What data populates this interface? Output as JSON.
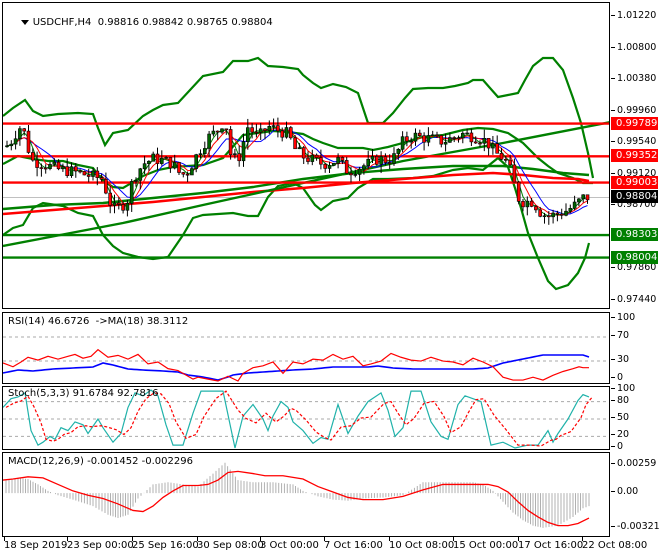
{
  "header": {
    "symbol": "USDCHF,H4",
    "open": "0.98816",
    "high": "0.98842",
    "low": "0.98765",
    "close": "0.98804",
    "title": "USDCHF,H4  0.98816 0.98842 0.98765 0.98804"
  },
  "main_axis": {
    "ticks": [
      "1.01220",
      "1.00800",
      "1.00380",
      "0.99960",
      "0.99540",
      "0.99120",
      "0.98700",
      "0.97860",
      "0.97440"
    ],
    "tags": [
      {
        "value": "0.99789",
        "color": "#ff0000"
      },
      {
        "value": "0.99352",
        "color": "#ff0000"
      },
      {
        "value": "0.99003",
        "color": "#ff0000"
      },
      {
        "value": "0.98804",
        "color": "#000000"
      },
      {
        "value": "0.98303",
        "color": "#008000"
      },
      {
        "value": "0.98004",
        "color": "#008000"
      }
    ]
  },
  "rsi": {
    "label": "RSI(14) 46.6726  ->MA(18) 38.3112",
    "ticks": [
      "100",
      "70",
      "30",
      "0"
    ]
  },
  "stoch": {
    "label": "Stoch(5,3,3) 91.6784 92.7816",
    "ticks": [
      "100",
      "80",
      "50",
      "20",
      "0"
    ]
  },
  "macd": {
    "label": "MACD(12,26,9) -0.001452 -0.002296",
    "ticks": [
      "0.00259",
      "0.00",
      "-0.003217"
    ]
  },
  "xaxis": {
    "labels": [
      "18 Sep 2019",
      "23 Sep 00:00",
      "25 Sep 16:00",
      "30 Sep 08:00",
      "3 Oct 00:00",
      "7 Oct 16:00",
      "10 Oct 08:00",
      "15 Oct 00:00",
      "17 Oct 16:00",
      "22 Oct 08:00"
    ]
  },
  "colors": {
    "resistance": "#ff0000",
    "support": "#008000",
    "bull_candle": "#006400",
    "bear_candle": "#ff0000",
    "rsi_line": "#ff0000",
    "rsi_ma": "#0000ff",
    "stoch_main": "#20b2aa",
    "stoch_signal": "#ff0000",
    "macd_signal": "#ff0000",
    "macd_hist": "#c0c0c0"
  },
  "chart_data": [
    {
      "type": "candlestick",
      "title": "USDCHF,H4",
      "ohlc_last": {
        "open": 0.98816,
        "high": 0.98842,
        "low": 0.98765,
        "close": 0.98804
      },
      "ylim": [
        0.973,
        1.014
      ],
      "y_ticks": [
        1.0122,
        1.008,
        1.0038,
        0.9996,
        0.9954,
        0.9912,
        0.987,
        0.9786,
        0.9744
      ],
      "horizontal_levels": [
        {
          "value": 0.99789,
          "color": "red",
          "kind": "resistance"
        },
        {
          "value": 0.99352,
          "color": "red",
          "kind": "resistance"
        },
        {
          "value": 0.99003,
          "color": "red",
          "kind": "resistance"
        },
        {
          "value": 0.98303,
          "color": "green",
          "kind": "support"
        },
        {
          "value": 0.98004,
          "color": "green",
          "kind": "support"
        }
      ],
      "current_price": 0.98804,
      "overlays": [
        "Bollinger Bands (green)",
        "Moving averages (red/blue/green thin)",
        "Long moving averages (green/red thick)",
        "Ascending trendline (green)"
      ],
      "x_labels": [
        "18 Sep 2019",
        "23 Sep 00:00",
        "25 Sep 16:00",
        "30 Sep 08:00",
        "3 Oct 00:00",
        "7 Oct 16:00",
        "10 Oct 08:00",
        "15 Oct 00:00",
        "17 Oct 16:00",
        "22 Oct 08:00"
      ],
      "approx_close_path": [
        0.994,
        0.9925,
        0.9905,
        0.9895,
        0.988,
        0.9862,
        0.988,
        0.992,
        0.993,
        0.9905,
        0.996,
        0.9985,
        0.996,
        0.9975,
        0.9945,
        0.993,
        0.9925,
        0.991,
        0.994,
        0.9955,
        0.9965,
        0.996,
        0.9975,
        0.9965,
        0.993,
        0.989,
        0.987,
        0.9862,
        0.9865,
        0.9875,
        0.9882
      ]
    },
    {
      "type": "line",
      "title": "RSI(14) 46.6726 ->MA(18) 38.3112",
      "ylim": [
        0,
        100
      ],
      "y_ticks": [
        100,
        70,
        30,
        0
      ],
      "grid_levels": [
        70,
        30
      ],
      "series": [
        {
          "name": "RSI(14)",
          "color": "red",
          "last": 46.6726
        },
        {
          "name": "MA(18)",
          "color": "blue",
          "last": 38.3112
        }
      ]
    },
    {
      "type": "line",
      "title": "Stoch(5,3,3) 91.6784 92.7816",
      "ylim": [
        0,
        100
      ],
      "y_ticks": [
        100,
        80,
        50,
        20,
        0
      ],
      "grid_levels": [
        80,
        50,
        20
      ],
      "series": [
        {
          "name": "%K",
          "color": "lightseagreen",
          "last": 91.6784
        },
        {
          "name": "%D",
          "color": "red",
          "style": "dashed",
          "last": 92.7816
        }
      ]
    },
    {
      "type": "bar",
      "title": "MACD(12,26,9) -0.001452 -0.002296",
      "ylim": [
        -0.003217,
        0.00259
      ],
      "y_ticks": [
        0.00259,
        0.0,
        -0.003217
      ],
      "series": [
        {
          "name": "MACD histogram",
          "color": "silver",
          "last": -0.001452
        },
        {
          "name": "Signal",
          "color": "red",
          "last": -0.002296
        }
      ]
    }
  ]
}
